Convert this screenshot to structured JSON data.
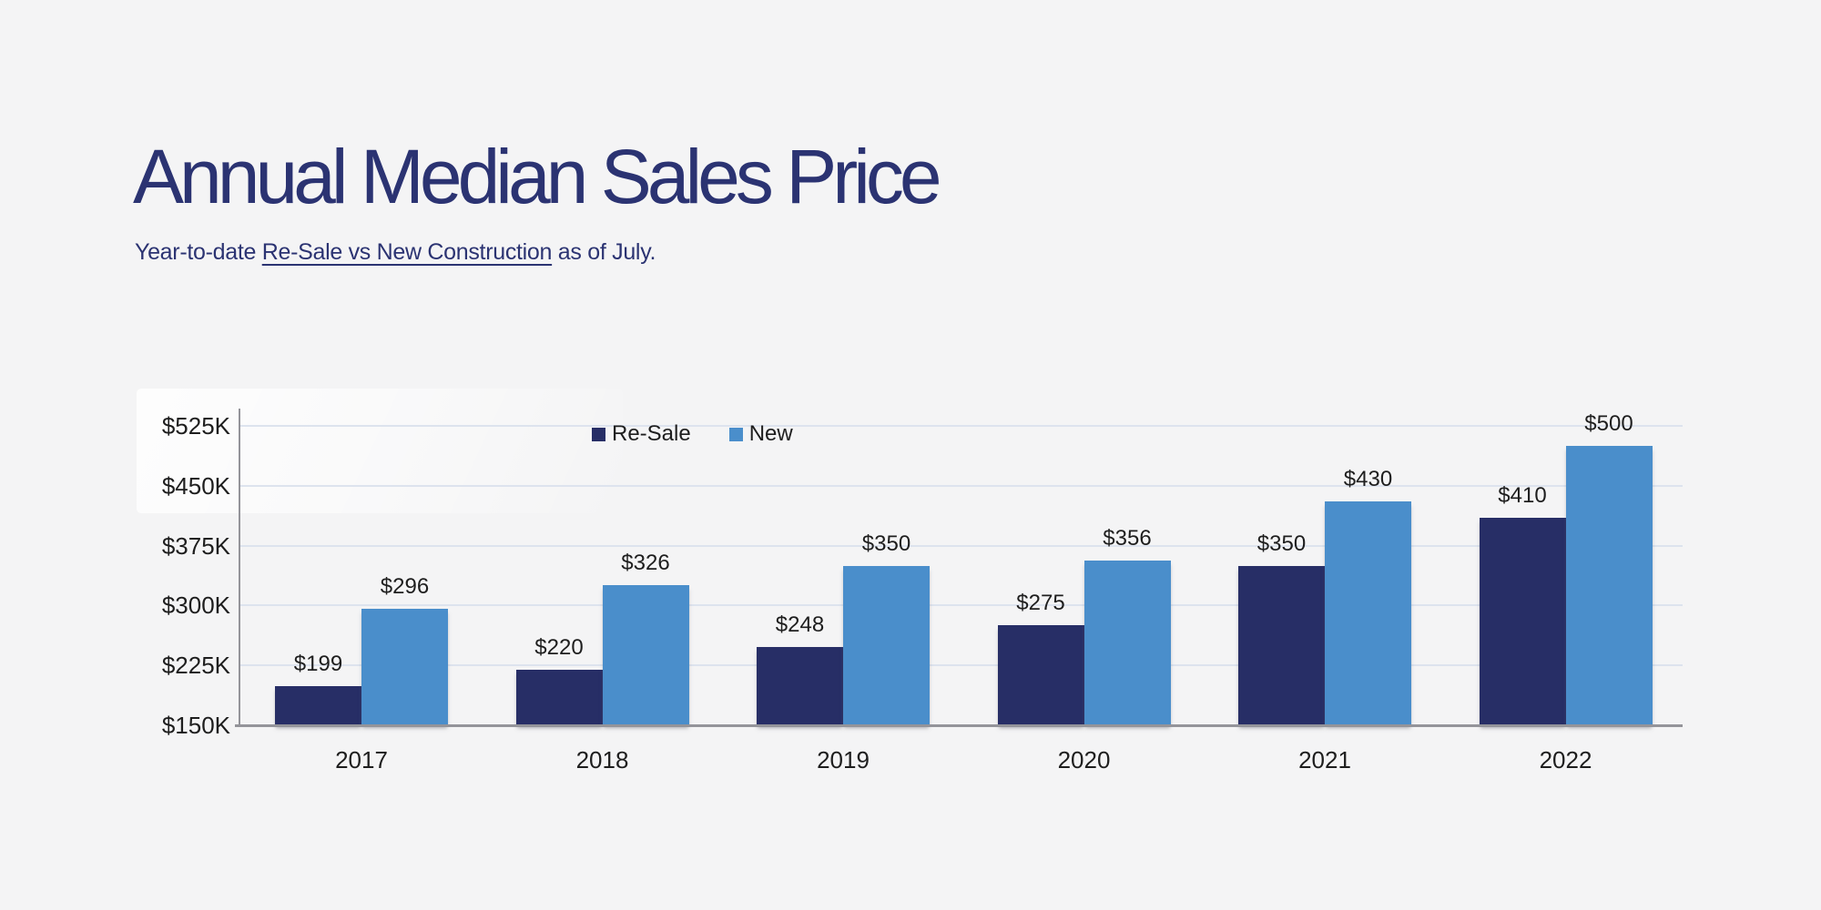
{
  "page": {
    "background_color": "#f4f4f5",
    "accent_color": "#2b3372"
  },
  "header": {
    "title": "Annual Median Sales Price",
    "subtitle_prefix": "Year-to-date ",
    "subtitle_link": "Re-Sale vs New Construction",
    "subtitle_suffix": " as of July."
  },
  "chart_data": {
    "type": "bar",
    "title": "Annual Median Sales Price",
    "subtitle": "Year-to-date Re-Sale vs New Construction as of July.",
    "categories": [
      "2017",
      "2018",
      "2019",
      "2020",
      "2021",
      "2022"
    ],
    "series": [
      {
        "name": "Re-Sale",
        "color": "#272e66",
        "values": [
          199,
          220,
          248,
          275,
          350,
          410
        ],
        "labels": [
          "$199",
          "$220",
          "$248",
          "$275",
          "$350",
          "$410"
        ]
      },
      {
        "name": "New",
        "color": "#4a8ecb",
        "values": [
          296,
          326,
          350,
          356,
          430,
          500
        ],
        "labels": [
          "$296",
          "$326",
          "$350",
          "$356",
          "$430",
          "$500"
        ]
      }
    ],
    "value_unit": "thousands of USD",
    "y_axis": {
      "min": 150,
      "max": 525,
      "ticks": [
        150,
        225,
        300,
        375,
        450,
        525
      ],
      "tick_labels": [
        "$150K",
        "$225K",
        "$300K",
        "$375K",
        "$450K",
        "$525K"
      ]
    },
    "grid": true,
    "grid_color": "#dde3ee",
    "axis_color": "#94949a",
    "label_color": "#1e1e1e",
    "legend_position": "top-center"
  }
}
